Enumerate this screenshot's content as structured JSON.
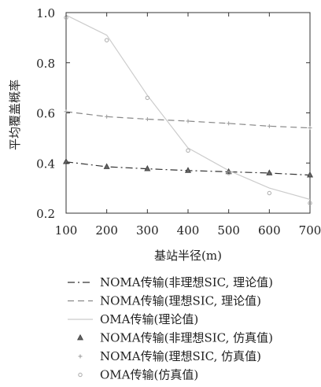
{
  "chart_data": {
    "type": "line",
    "xlabel": "基站半径(m)",
    "ylabel": "平均覆盖概率",
    "xlim": [
      100,
      700
    ],
    "ylim": [
      0.2,
      1.0
    ],
    "x_ticks": [
      100,
      200,
      300,
      400,
      500,
      600,
      700
    ],
    "y_ticks": [
      "0.2",
      "0.4",
      "0.6",
      "0.8",
      "1.0"
    ],
    "grid": false,
    "legend_position": "below",
    "series": [
      {
        "name": "NOMA传输(非理想SIC, 理论值)",
        "kind": "line",
        "style": "dash-dot",
        "color": "#333333",
        "x": [
          100,
          200,
          300,
          400,
          500,
          600,
          700
        ],
        "y": [
          0.405,
          0.385,
          0.377,
          0.37,
          0.365,
          0.36,
          0.352
        ]
      },
      {
        "name": "NOMA传输(理想SIC, 理论值)",
        "kind": "line",
        "style": "dashed",
        "color": "#888888",
        "x": [
          100,
          200,
          300,
          400,
          500,
          600,
          700
        ],
        "y": [
          0.605,
          0.585,
          0.575,
          0.567,
          0.558,
          0.547,
          0.54
        ]
      },
      {
        "name": "OMA传输(理论值)",
        "kind": "line",
        "style": "solid",
        "color": "#cccccc",
        "x": [
          100,
          200,
          300,
          400,
          500,
          600,
          700
        ],
        "y": [
          0.99,
          0.91,
          0.67,
          0.46,
          0.37,
          0.3,
          0.255
        ]
      },
      {
        "name": "NOMA传输(非理想SIC, 仿真值)",
        "kind": "marker",
        "marker": "triangle",
        "color": "#444444",
        "x": [
          100,
          200,
          300,
          400,
          500,
          600,
          700
        ],
        "y": [
          0.405,
          0.385,
          0.377,
          0.37,
          0.365,
          0.36,
          0.352
        ]
      },
      {
        "name": "NOMA传输(理想SIC, 仿真值)",
        "kind": "marker",
        "marker": "plus",
        "color": "#999999",
        "x": [
          100,
          200,
          300,
          400,
          500,
          600,
          700
        ],
        "y": [
          0.605,
          0.585,
          0.575,
          0.567,
          0.558,
          0.547,
          0.54
        ]
      },
      {
        "name": "OMA传输(仿真值)",
        "kind": "marker",
        "marker": "circle",
        "color": "#aaaaaa",
        "x": [
          100,
          200,
          300,
          400,
          500,
          600,
          700
        ],
        "y": [
          0.98,
          0.89,
          0.66,
          0.45,
          0.36,
          0.28,
          0.24
        ]
      }
    ]
  }
}
